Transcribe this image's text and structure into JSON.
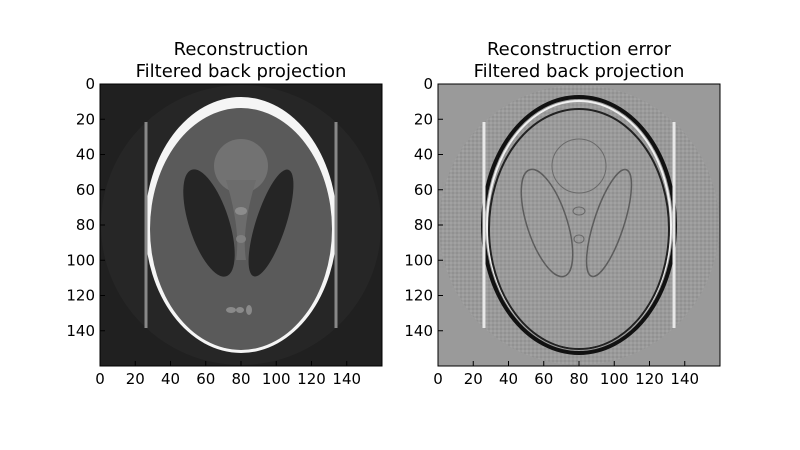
{
  "chart_data": [
    {
      "type": "heatmap",
      "title_lines": [
        "Reconstruction",
        "Filtered back projection"
      ],
      "xlabel": "",
      "ylabel": "",
      "xlim": [
        0,
        160
      ],
      "ylim": [
        0,
        160
      ],
      "y_inverted": true,
      "xticks": [
        "0",
        "20",
        "40",
        "60",
        "80",
        "100",
        "120",
        "140"
      ],
      "yticks": [
        "0",
        "20",
        "40",
        "60",
        "80",
        "100",
        "120",
        "140"
      ],
      "colormap": "gray",
      "background_color": "#202020",
      "phantom": {
        "outer_ellipse": {
          "center": [
            80,
            80
          ],
          "semi_axes": [
            54,
            72
          ],
          "intensity": 1.0
        },
        "inner_ellipse": {
          "center": [
            80,
            82
          ],
          "semi_axes": [
            52,
            68
          ],
          "intensity": 0.32
        },
        "left_lobe": {
          "center": [
            62,
            79
          ],
          "semi_axes": [
            11,
            32
          ],
          "rotation_deg": -18,
          "intensity": 0.12
        },
        "right_lobe": {
          "center": [
            96,
            79
          ],
          "semi_axes": [
            8,
            32
          ],
          "rotation_deg": 18,
          "intensity": 0.12
        },
        "top_circle": {
          "center": [
            80,
            47
          ],
          "radius": 15,
          "intensity": 0.45
        },
        "small_dots": [
          [
            80,
            72
          ],
          [
            80,
            88
          ],
          [
            75,
            128
          ],
          [
            80,
            128
          ],
          [
            86,
            128
          ]
        ],
        "streak_x": [
          26,
          134
        ]
      }
    },
    {
      "type": "heatmap",
      "title_lines": [
        "Reconstruction error",
        "Filtered back projection"
      ],
      "xlabel": "",
      "ylabel": "",
      "xlim": [
        0,
        160
      ],
      "ylim": [
        0,
        160
      ],
      "y_inverted": true,
      "xticks": [
        "0",
        "20",
        "40",
        "60",
        "80",
        "100",
        "120",
        "140"
      ],
      "yticks": [
        "0",
        "20",
        "40",
        "60",
        "80",
        "100",
        "120",
        "140"
      ],
      "colormap": "gray",
      "background_color": "#9a9a9a"
    }
  ]
}
